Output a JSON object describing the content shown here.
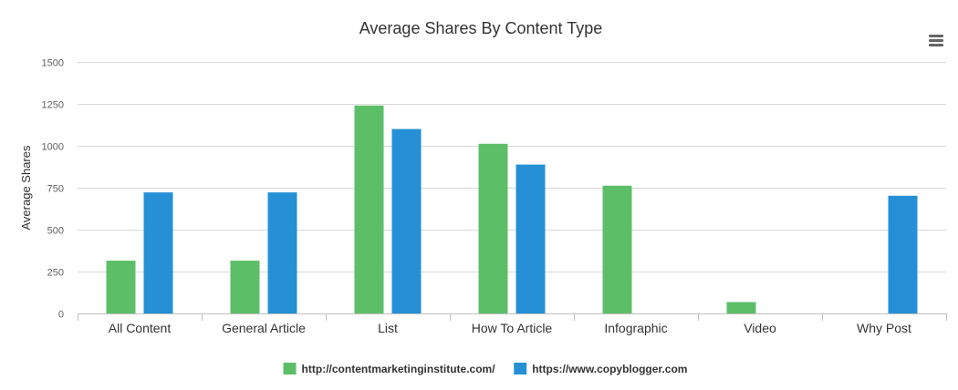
{
  "chart_data": {
    "type": "bar",
    "title": "Average Shares By Content Type",
    "xlabel": "",
    "ylabel": "Average Shares",
    "categories": [
      "All Content",
      "General Article",
      "List",
      "How To Article",
      "Infographic",
      "Video",
      "Why Post"
    ],
    "series": [
      {
        "name": "http://contentmarketinginstitute.com/",
        "color": "#5cbf68",
        "values": [
          315,
          315,
          1240,
          1012,
          762,
          68,
          null
        ]
      },
      {
        "name": "https://www.copyblogger.com",
        "color": "#2590d6",
        "values": [
          722,
          722,
          1100,
          888,
          null,
          null,
          702
        ]
      }
    ],
    "ylim": [
      0,
      1500
    ],
    "yticks": [
      0,
      250,
      500,
      750,
      1000,
      1250,
      1500
    ],
    "ytick_labels": [
      "0",
      "250",
      "500",
      "750",
      "1000",
      "1250",
      "1500"
    ],
    "grid": true,
    "legend_position": "bottom-center"
  },
  "toolbar": {
    "menu_icon": "hamburger-menu-icon"
  },
  "colors": {
    "grid": "#d8d8d8",
    "axis_text": "#606060",
    "title_text": "#333333"
  }
}
